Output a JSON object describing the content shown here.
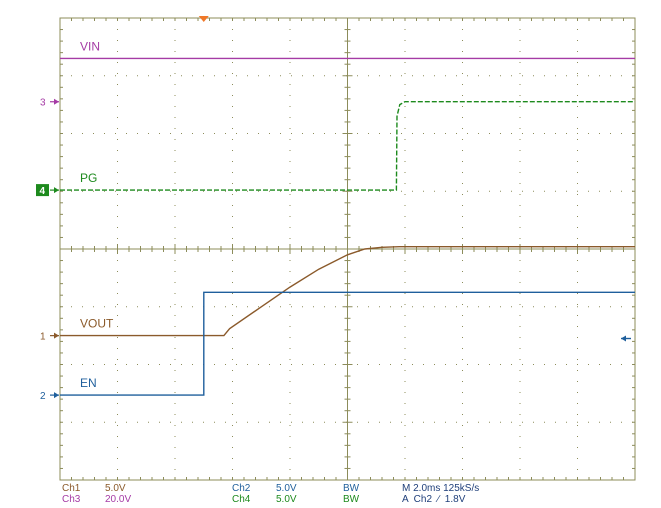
{
  "chart_data": {
    "type": "line",
    "title": "",
    "xlabel": "",
    "ylabel": "",
    "grid": true,
    "x_unit": "ms",
    "xlim": [
      -10,
      10
    ],
    "ylim": [
      -4,
      4
    ],
    "x_divisions": 10,
    "y_divisions": 8,
    "series": [
      {
        "name": "VIN",
        "ref_marker": "",
        "color": "#a53ba5",
        "style": "solid",
        "x": [
          -10,
          10
        ],
        "y": [
          3.3,
          3.3
        ]
      },
      {
        "name": "PG",
        "ref_marker": "4",
        "color": "#1d8a1d",
        "style": "dashed",
        "x": [
          -10,
          1.7,
          1.72,
          1.82,
          2.0,
          10
        ],
        "y": [
          1.02,
          1.02,
          2.3,
          2.5,
          2.55,
          2.55
        ]
      },
      {
        "name": "VOUT",
        "ref_marker": "1",
        "color": "#8b5a2b",
        "style": "solid",
        "x": [
          -10,
          -4.3,
          -4.1,
          -3.0,
          -2.0,
          -1.0,
          0.0,
          0.6,
          1.2,
          1.8,
          10
        ],
        "y": [
          -1.5,
          -1.5,
          -1.38,
          -1.0,
          -0.66,
          -0.35,
          -0.1,
          0.0,
          0.03,
          0.04,
          0.04
        ]
      },
      {
        "name": "EN",
        "ref_marker": "2",
        "color": "#1f5f9c",
        "style": "solid",
        "x": [
          -10,
          -5.0,
          -5.0,
          10
        ],
        "y": [
          -2.53,
          -2.53,
          -0.75,
          -0.75
        ]
      }
    ],
    "ref_markers": [
      {
        "label": "3",
        "y": 2.55,
        "color": "#a53ba5",
        "filled": false
      },
      {
        "label": "4",
        "y": 1.02,
        "color": "#1d8a1d",
        "filled": true
      },
      {
        "label": "1",
        "y": -1.5,
        "color": "#8b5a2b",
        "filled": false
      },
      {
        "label": "2",
        "y": -2.53,
        "color": "#1f5f9c",
        "filled": false
      }
    ],
    "trigger_marker_x": -5.0,
    "trigger_arrow_y": -1.55
  },
  "status": {
    "ch1": {
      "name": "Ch1",
      "scale": "5.0V",
      "color": "#8b5a2b"
    },
    "ch2": {
      "name": "Ch2",
      "scale": "5.0V",
      "color": "#1f5f9c"
    },
    "ch3": {
      "name": "Ch3",
      "scale": "20.0V",
      "color": "#a53ba5"
    },
    "ch4": {
      "name": "Ch4",
      "scale": "5.0V",
      "color": "#1d8a1d"
    },
    "bw1": "BW",
    "bw2": "BW",
    "timebase": "M 2.0ms 125kS/s",
    "trigger": "A  Ch2  ∕  1.8V"
  }
}
